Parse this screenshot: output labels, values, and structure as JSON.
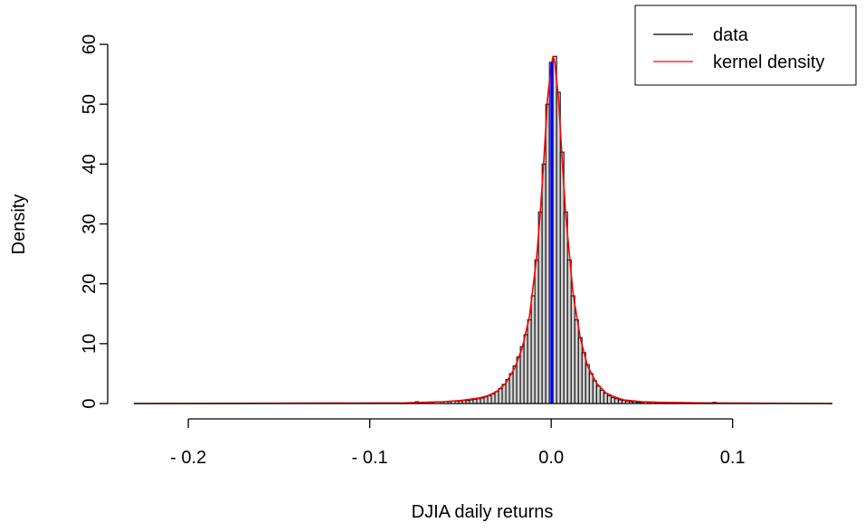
{
  "chart_data": {
    "type": "bar",
    "title": "",
    "xlabel": "DJIA daily returns",
    "ylabel": "Density",
    "xlim": [
      -0.23,
      0.155
    ],
    "ylim": [
      0,
      60
    ],
    "x_ticks": [
      -0.2,
      -0.1,
      0.0,
      0.1
    ],
    "x_tick_labels": [
      "- 0.2",
      "- 0.1",
      "0.0",
      "0.1"
    ],
    "y_ticks": [
      0,
      10,
      20,
      30,
      40,
      50,
      60
    ],
    "y_tick_labels": [
      "0",
      "10",
      "20",
      "30",
      "40",
      "50",
      "60"
    ],
    "grid": false,
    "legend": {
      "placement": "top-right",
      "entries": [
        {
          "label": "data",
          "color": "#000000"
        },
        {
          "label": "kernel density",
          "color": "#ff0000"
        }
      ]
    },
    "histogram": {
      "bin_width": 0.002,
      "bins": [
        {
          "x": -0.074,
          "density": 0.3
        },
        {
          "x": -0.066,
          "density": 0.2
        },
        {
          "x": -0.06,
          "density": 0.3
        },
        {
          "x": -0.056,
          "density": 0.3
        },
        {
          "x": -0.052,
          "density": 0.4
        },
        {
          "x": -0.05,
          "density": 0.4
        },
        {
          "x": -0.048,
          "density": 0.5
        },
        {
          "x": -0.046,
          "density": 0.5
        },
        {
          "x": -0.044,
          "density": 0.6
        },
        {
          "x": -0.042,
          "density": 0.7
        },
        {
          "x": -0.04,
          "density": 0.8
        },
        {
          "x": -0.038,
          "density": 0.9
        },
        {
          "x": -0.036,
          "density": 1.1
        },
        {
          "x": -0.034,
          "density": 1.3
        },
        {
          "x": -0.032,
          "density": 1.6
        },
        {
          "x": -0.03,
          "density": 2.0
        },
        {
          "x": -0.028,
          "density": 2.5
        },
        {
          "x": -0.026,
          "density": 3.2
        },
        {
          "x": -0.024,
          "density": 4.0
        },
        {
          "x": -0.022,
          "density": 5.0
        },
        {
          "x": -0.02,
          "density": 6.3
        },
        {
          "x": -0.018,
          "density": 7.8
        },
        {
          "x": -0.016,
          "density": 9.5
        },
        {
          "x": -0.014,
          "density": 11.5
        },
        {
          "x": -0.012,
          "density": 14.0
        },
        {
          "x": -0.01,
          "density": 18.0
        },
        {
          "x": -0.008,
          "density": 24.0
        },
        {
          "x": -0.006,
          "density": 32.0
        },
        {
          "x": -0.004,
          "density": 40.0
        },
        {
          "x": -0.002,
          "density": 50.0
        },
        {
          "x": 0.0,
          "density": 57.0
        },
        {
          "x": 0.002,
          "density": 58.0
        },
        {
          "x": 0.004,
          "density": 52.0
        },
        {
          "x": 0.006,
          "density": 42.0
        },
        {
          "x": 0.008,
          "density": 32.0
        },
        {
          "x": 0.01,
          "density": 24.0
        },
        {
          "x": 0.012,
          "density": 18.0
        },
        {
          "x": 0.014,
          "density": 14.0
        },
        {
          "x": 0.016,
          "density": 11.0
        },
        {
          "x": 0.018,
          "density": 8.5
        },
        {
          "x": 0.02,
          "density": 6.5
        },
        {
          "x": 0.022,
          "density": 5.0
        },
        {
          "x": 0.024,
          "density": 3.8
        },
        {
          "x": 0.026,
          "density": 2.9
        },
        {
          "x": 0.028,
          "density": 2.2
        },
        {
          "x": 0.03,
          "density": 1.7
        },
        {
          "x": 0.032,
          "density": 1.3
        },
        {
          "x": 0.034,
          "density": 1.0
        },
        {
          "x": 0.036,
          "density": 0.8
        },
        {
          "x": 0.038,
          "density": 0.6
        },
        {
          "x": 0.04,
          "density": 0.5
        },
        {
          "x": 0.042,
          "density": 0.4
        },
        {
          "x": 0.044,
          "density": 0.3
        },
        {
          "x": 0.046,
          "density": 0.3
        },
        {
          "x": 0.048,
          "density": 0.2
        },
        {
          "x": 0.05,
          "density": 0.2
        },
        {
          "x": 0.054,
          "density": 0.2
        },
        {
          "x": 0.058,
          "density": 0.1
        },
        {
          "x": 0.064,
          "density": 0.2
        },
        {
          "x": 0.068,
          "density": 0.1
        },
        {
          "x": 0.09,
          "density": 0.2
        }
      ]
    },
    "kernel_density": {
      "color": "#ff0000",
      "x": [
        -0.23,
        -0.08,
        -0.06,
        -0.05,
        -0.04,
        -0.035,
        -0.03,
        -0.025,
        -0.02,
        -0.016,
        -0.012,
        -0.008,
        -0.006,
        -0.004,
        -0.002,
        0.0,
        0.001,
        0.002,
        0.004,
        0.006,
        0.008,
        0.012,
        0.016,
        0.02,
        0.025,
        0.03,
        0.035,
        0.04,
        0.05,
        0.06,
        0.08,
        0.155
      ],
      "y": [
        0,
        0.1,
        0.3,
        0.5,
        0.9,
        1.3,
        2.0,
        3.4,
        6.0,
        9.3,
        14.5,
        24.5,
        32.0,
        41.0,
        51.0,
        56.5,
        58.0,
        57.0,
        51.0,
        41.0,
        31.5,
        18.5,
        11.0,
        6.3,
        3.4,
        1.8,
        1.1,
        0.6,
        0.3,
        0.2,
        0.1,
        0
      ]
    },
    "mean_line": {
      "x": 0.0003,
      "color": "#0000ff"
    }
  }
}
